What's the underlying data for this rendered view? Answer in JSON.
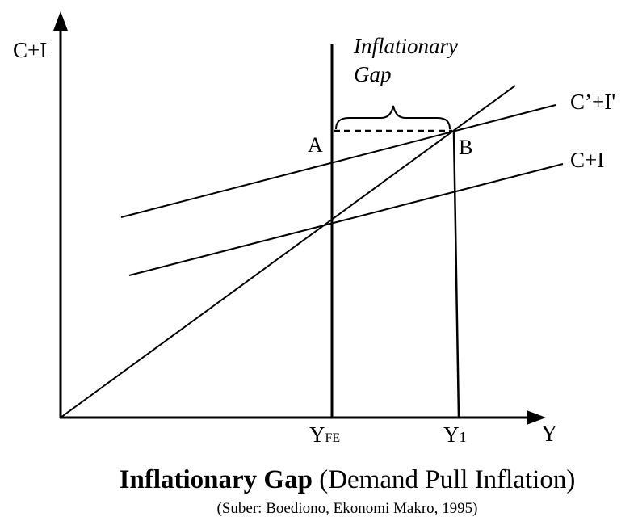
{
  "diagram": {
    "y_axis_label": "C+I",
    "x_axis_label": "Y",
    "gap_label_line1": "Inflationary",
    "gap_label_line2": "Gap",
    "point_a": "A",
    "point_b": "B",
    "curve_upper_label": "C’+I'",
    "curve_lower_label": "C+I",
    "yfe_main": "Y",
    "yfe_sub": "FE",
    "y1_main": "Y",
    "y1_sub": "1"
  },
  "caption": {
    "title_bold": "Inflationary Gap",
    "title_rest": " (Demand Pull Inflation)",
    "source": "(Suber: Boediono, Ekonomi Makro, 1995)"
  },
  "colors": {
    "ink": "#000000",
    "background": "#ffffff"
  }
}
